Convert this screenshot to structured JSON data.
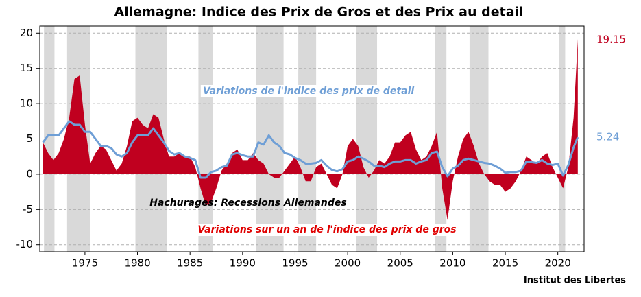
{
  "chart_data": {
    "type": "area-line",
    "title": "Allemagne: Indice des Prix de Gros et des Prix au detail",
    "source": "Institut des Libertes",
    "annotations": [
      "Variations de l'indice des prix de detail",
      "Hachurages: Recessions Allemandes",
      "Variations sur un an de l'indice des prix de gros"
    ],
    "xlim": [
      1970.7,
      2022.5
    ],
    "xticks": [
      1975,
      1980,
      1985,
      1990,
      1995,
      2000,
      2005,
      2010,
      2015,
      2020
    ],
    "ylim": [
      -11,
      21
    ],
    "yticks": [
      -10,
      -5,
      0,
      5,
      10,
      15,
      20
    ],
    "grid": true,
    "recessions": [
      [
        1971.1,
        1972.1
      ],
      [
        1973.3,
        1975.5
      ],
      [
        1979.8,
        1982.8
      ],
      [
        1985.8,
        1987.2
      ],
      [
        1991.3,
        1993.9
      ],
      [
        1995.3,
        1997.0
      ],
      [
        2000.8,
        2002.8
      ],
      [
        2008.3,
        2009.4
      ],
      [
        2011.6,
        2013.4
      ],
      [
        2020.1,
        2020.7
      ]
    ],
    "x": [
      1971.0,
      1971.5,
      1972.0,
      1972.5,
      1973.0,
      1973.5,
      1974.0,
      1974.5,
      1975.0,
      1975.5,
      1976.0,
      1976.5,
      1977.0,
      1977.5,
      1978.0,
      1978.5,
      1979.0,
      1979.5,
      1980.0,
      1980.5,
      1981.0,
      1981.5,
      1982.0,
      1982.5,
      1983.0,
      1983.5,
      1984.0,
      1984.5,
      1985.0,
      1985.5,
      1986.0,
      1986.5,
      1987.0,
      1987.5,
      1988.0,
      1988.5,
      1989.0,
      1989.5,
      1990.0,
      1990.5,
      1991.0,
      1991.5,
      1992.0,
      1992.5,
      1993.0,
      1993.5,
      1994.0,
      1994.5,
      1995.0,
      1995.5,
      1996.0,
      1996.5,
      1997.0,
      1997.5,
      1998.0,
      1998.5,
      1999.0,
      1999.5,
      2000.0,
      2000.5,
      2001.0,
      2001.5,
      2002.0,
      2002.5,
      2003.0,
      2003.5,
      2004.0,
      2004.5,
      2005.0,
      2005.5,
      2006.0,
      2006.5,
      2007.0,
      2007.5,
      2008.0,
      2008.5,
      2009.0,
      2009.5,
      2010.0,
      2010.5,
      2011.0,
      2011.5,
      2012.0,
      2012.5,
      2013.0,
      2013.5,
      2014.0,
      2014.5,
      2015.0,
      2015.5,
      2016.0,
      2016.5,
      2017.0,
      2017.5,
      2018.0,
      2018.5,
      2019.0,
      2019.5,
      2020.0,
      2020.5,
      2021.0,
      2021.5,
      2021.9
    ],
    "series": [
      {
        "name": "Prix de gros",
        "color": "#c0001f",
        "values": [
          4.5,
          3,
          2,
          3,
          5,
          8,
          13.5,
          14,
          7,
          1.5,
          3,
          4,
          3.5,
          2,
          0.5,
          1.5,
          4,
          7.5,
          8,
          7,
          6.5,
          8.5,
          8,
          5,
          2.5,
          2.5,
          3,
          2.5,
          2.5,
          1,
          -2,
          -4.5,
          -4,
          -2,
          0.5,
          1.5,
          3,
          3.5,
          2,
          2,
          3,
          2,
          1.5,
          0,
          -0.5,
          -0.5,
          0.5,
          1.5,
          2.5,
          1,
          -1,
          -1,
          1,
          1.5,
          0,
          -1.5,
          -2,
          0,
          4,
          5,
          4,
          1,
          -0.5,
          0.5,
          2,
          1.5,
          2.5,
          4.5,
          4.5,
          5.5,
          6,
          3.5,
          2,
          2.5,
          4,
          6,
          -2,
          -6.5,
          -1,
          2.5,
          5,
          6,
          4,
          1.5,
          0,
          -1,
          -1.5,
          -1.5,
          -2.5,
          -2,
          -1,
          0.5,
          2.5,
          2,
          1.5,
          2.5,
          3,
          1,
          -0.5,
          -2,
          1,
          8,
          19.15
        ]
      },
      {
        "name": "Prix de detail",
        "color": "#6f9fd6",
        "values": [
          4.5,
          5.5,
          5.5,
          5.5,
          6.5,
          7.5,
          7,
          7,
          6,
          6,
          5,
          4,
          4,
          3.7,
          2.8,
          2.5,
          3,
          4.5,
          5.5,
          5.5,
          5.5,
          6.5,
          5.5,
          4.5,
          3.3,
          2.8,
          3,
          2.5,
          2.3,
          2,
          -0.5,
          -0.5,
          0.3,
          0.5,
          1,
          1.2,
          2.8,
          3,
          2.7,
          2.5,
          2.5,
          4.5,
          4.2,
          5.5,
          4.5,
          4,
          3,
          2.8,
          2.3,
          2,
          1.5,
          1.5,
          1.6,
          2,
          1.2,
          0.6,
          0.4,
          0.7,
          1.8,
          2,
          2.5,
          2.2,
          1.8,
          1.2,
          1.2,
          1,
          1.5,
          1.8,
          1.8,
          2,
          2,
          1.5,
          1.8,
          2,
          3,
          3.2,
          1,
          -0.3,
          0.8,
          1.2,
          2,
          2.2,
          2,
          1.8,
          1.6,
          1.5,
          1.2,
          0.8,
          0.2,
          0.3,
          0.3,
          0.5,
          1.8,
          1.7,
          1.6,
          2,
          1.5,
          1.3,
          1.5,
          -0.2,
          1.3,
          3.8,
          5.24
        ]
      }
    ]
  }
}
